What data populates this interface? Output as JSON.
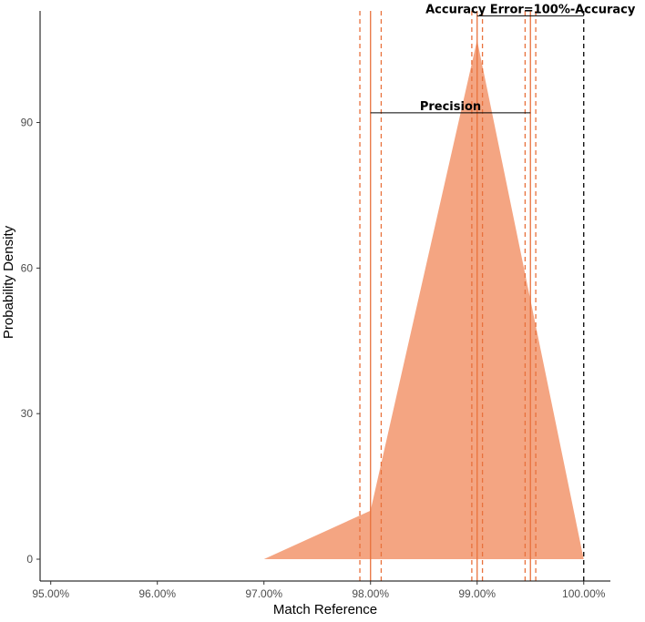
{
  "chart_data": {
    "type": "area",
    "xlabel": "Match Reference",
    "ylabel": "Probability Density",
    "xlim": [
      94.9,
      100.25
    ],
    "ylim": [
      -4.5,
      113
    ],
    "x_ticks": [
      95,
      96,
      97,
      98,
      99,
      100
    ],
    "x_tick_labels": [
      "95.00%",
      "96.00%",
      "97.00%",
      "98.00%",
      "99.00%",
      "100.00%"
    ],
    "y_ticks": [
      0,
      30,
      60,
      90
    ],
    "y_tick_labels": [
      "0",
      "30",
      "60",
      "90"
    ],
    "grid": false,
    "legend": "none",
    "series": [
      {
        "x": [
          97.0,
          98.0,
          99.0,
          100.0
        ],
        "y": [
          0,
          10,
          107,
          0
        ],
        "fill": "#f4a582"
      }
    ],
    "vlines": [
      {
        "x": 97.9,
        "style": "dashed",
        "color": "#e8713c"
      },
      {
        "x": 98.0,
        "style": "solid",
        "color": "#e8713c"
      },
      {
        "x": 98.1,
        "style": "dashed",
        "color": "#e8713c"
      },
      {
        "x": 98.95,
        "style": "dashed",
        "color": "#e8713c"
      },
      {
        "x": 99.0,
        "style": "solid",
        "color": "#e8713c"
      },
      {
        "x": 99.05,
        "style": "dashed",
        "color": "#e8713c"
      },
      {
        "x": 99.45,
        "style": "dashed",
        "color": "#e8713c"
      },
      {
        "x": 99.5,
        "style": "solid",
        "color": "#e8713c"
      },
      {
        "x": 99.55,
        "style": "dashed",
        "color": "#e8713c"
      },
      {
        "x": 100.0,
        "style": "dashed",
        "color": "#000000"
      }
    ],
    "annotations": [
      {
        "text": "Precision",
        "x1": 98.0,
        "x2": 99.5,
        "y": 92
      },
      {
        "text": "Accuracy Error=100%-Accuracy",
        "x1": 99.0,
        "x2": 100.0,
        "y": 112
      }
    ]
  }
}
